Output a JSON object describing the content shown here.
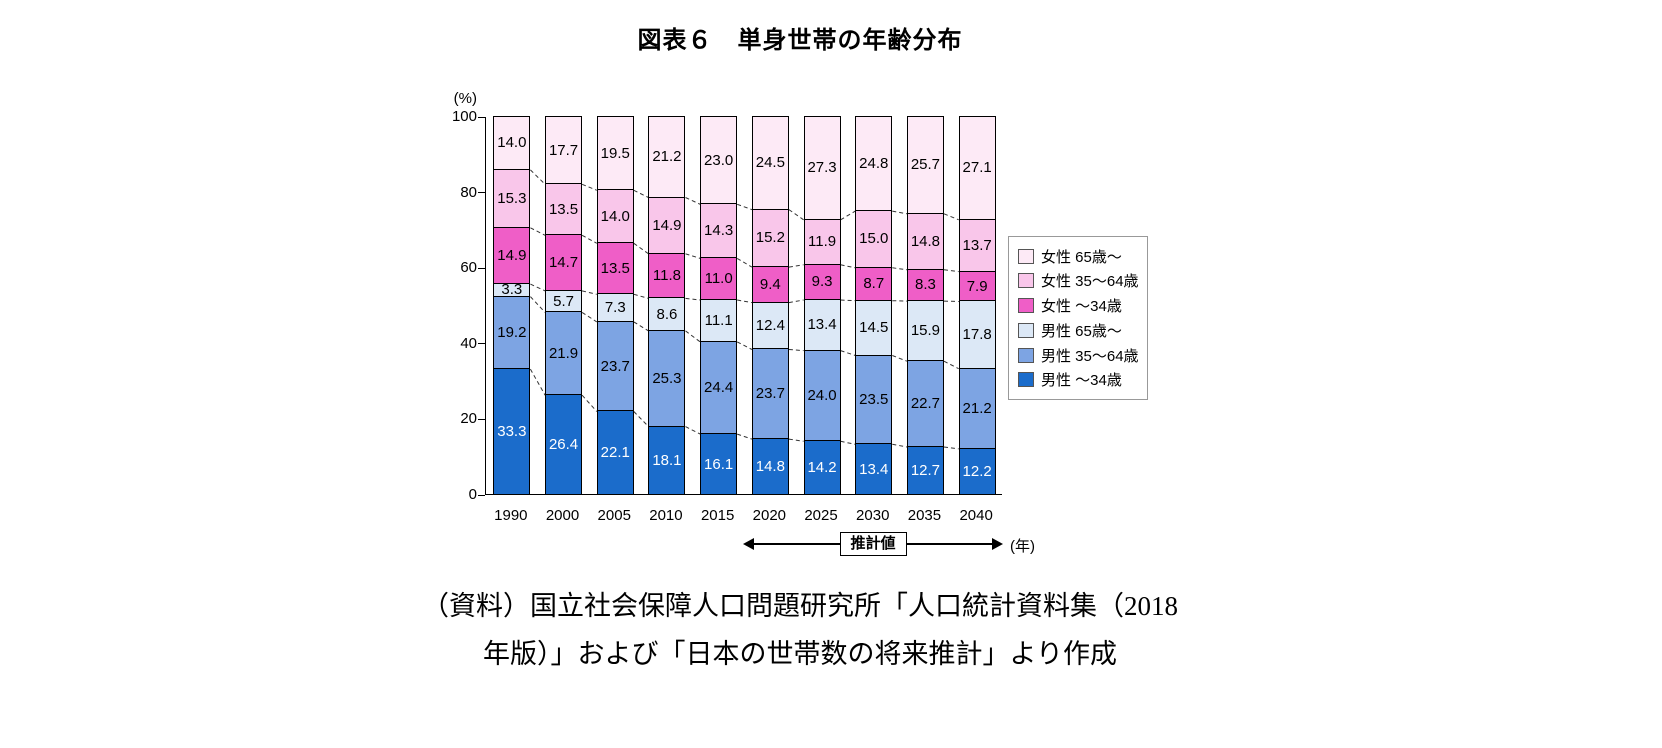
{
  "page": {
    "title": "図表６　単身世帯の年齢分布",
    "source_line1": "（資料）国立社会保障人口問題研究所「人口統計資料集（2018",
    "source_line2": "年版）」および「日本の世帯数の将来推計」より作成"
  },
  "chart_data": {
    "type": "bar",
    "stacked": true,
    "title": "図表６　単身世帯の年齢分布",
    "unit_label": "(%)",
    "x_axis_unit": "(年)",
    "categories": [
      "1990",
      "2000",
      "2005",
      "2010",
      "2015",
      "2020",
      "2025",
      "2030",
      "2035",
      "2040"
    ],
    "y_ticks": [
      0,
      20,
      40,
      60,
      80,
      100
    ],
    "ylim": [
      0,
      100
    ],
    "grid": false,
    "legend_position": "right",
    "series": [
      {
        "name": "男性 ～34歳",
        "color": "#1b6ccb",
        "label_color": "#ffffff",
        "values": [
          33.3,
          26.4,
          22.1,
          18.1,
          16.1,
          14.8,
          14.2,
          13.4,
          12.7,
          12.2
        ]
      },
      {
        "name": "男性 35～64歳",
        "color": "#7da4e3",
        "label_color": "#000000",
        "values": [
          19.2,
          21.9,
          23.7,
          25.3,
          24.4,
          23.7,
          24.0,
          23.5,
          22.7,
          21.2
        ]
      },
      {
        "name": "男性 65歳～",
        "color": "#dce8f6",
        "label_color": "#000000",
        "values": [
          3.3,
          5.7,
          7.3,
          8.6,
          11.1,
          12.4,
          13.4,
          14.5,
          15.9,
          17.8
        ]
      },
      {
        "name": "女性 ～34歳",
        "color": "#ef5ec7",
        "label_color": "#000000",
        "values": [
          14.9,
          14.7,
          13.5,
          11.8,
          11.0,
          9.4,
          9.3,
          8.7,
          8.3,
          7.9
        ]
      },
      {
        "name": "女性 35～64歳",
        "color": "#f9c6ea",
        "label_color": "#000000",
        "values": [
          15.3,
          13.5,
          14.0,
          14.9,
          14.3,
          15.2,
          11.9,
          15.0,
          14.8,
          13.7
        ]
      },
      {
        "name": "女性 65歳～",
        "color": "#fdeaf6",
        "label_color": "#000000",
        "values": [
          14.0,
          17.7,
          19.5,
          21.2,
          23.0,
          24.5,
          27.3,
          24.8,
          25.7,
          27.1
        ]
      }
    ],
    "legend_order_note": "legend shown in reverse stacking order (top segment first)",
    "annotation": {
      "label": "推計値",
      "span": [
        "2020",
        "2040"
      ]
    }
  }
}
